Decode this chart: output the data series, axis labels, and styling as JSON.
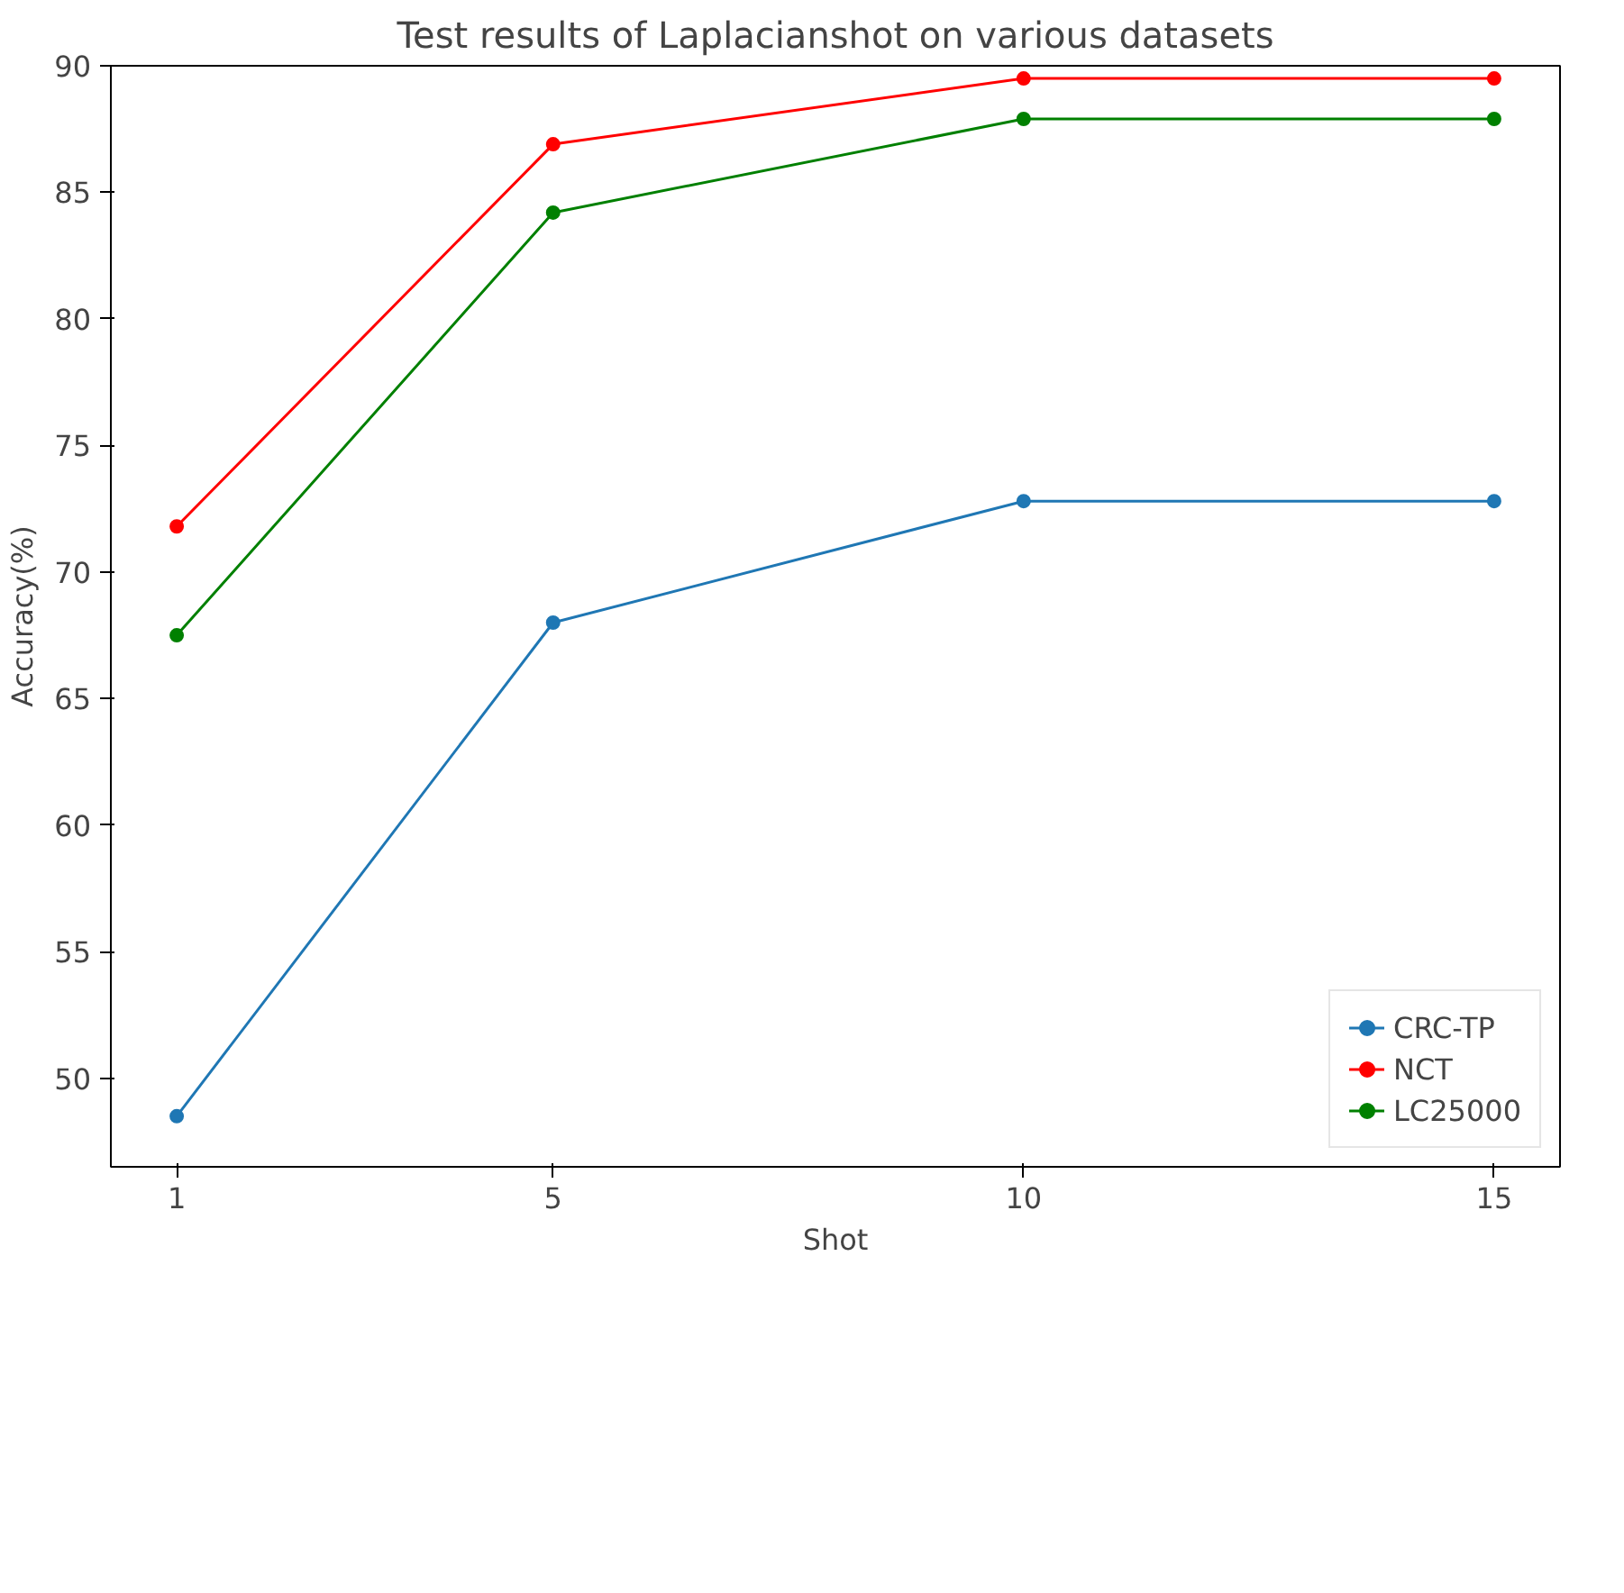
{
  "chart_data": {
    "type": "line",
    "title": "Test results of Laplacianshot on various datasets",
    "xlabel": "Shot",
    "ylabel": "Accuracy(%)",
    "x": [
      1,
      5,
      10,
      15
    ],
    "xlim": [
      0.3,
      15.7
    ],
    "xticks": [
      1,
      5,
      10,
      15
    ],
    "ylim": [
      46.5,
      90
    ],
    "yticks": [
      50,
      55,
      60,
      65,
      70,
      75,
      80,
      85,
      90
    ],
    "series": [
      {
        "name": "CRC-TP",
        "color": "#1f77b4",
        "values": [
          48.5,
          68.0,
          72.8,
          72.8
        ]
      },
      {
        "name": "NCT",
        "color": "#ff0000",
        "values": [
          71.8,
          86.9,
          89.5,
          89.5
        ]
      },
      {
        "name": "LC25000",
        "color": "#008000",
        "values": [
          67.5,
          84.2,
          87.9,
          87.9
        ]
      }
    ],
    "marker": "circle",
    "line_style": "solid",
    "grid": false,
    "legend": "bottom right"
  }
}
